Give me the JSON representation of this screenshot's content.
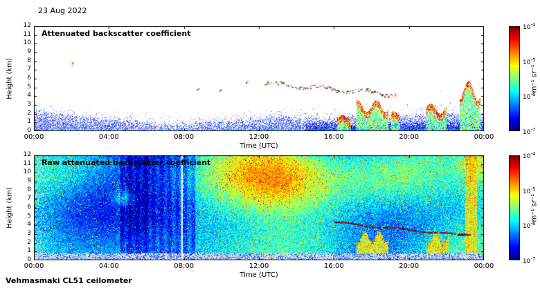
{
  "page": {
    "date_label": "23 Aug 2022",
    "footer_label": "Vehmasmaki CL51 ceilometer",
    "background": "#ffffff"
  },
  "chart_data": [
    {
      "id": "attenuated",
      "type": "heatmap",
      "title": "Attenuated backscatter coefficient",
      "xlabel": "Time (UTC)",
      "ylabel": "Height (km)",
      "x_range_hours": [
        0,
        24
      ],
      "y_range_km": [
        0,
        12
      ],
      "x_ticks": [
        "00:00",
        "04:00",
        "08:00",
        "12:00",
        "16:00",
        "20:00",
        "00:00"
      ],
      "y_ticks": [
        "0",
        "1",
        "2",
        "3",
        "4",
        "5",
        "6",
        "7",
        "8",
        "9",
        "10",
        "11",
        "12"
      ],
      "colormap": "jet",
      "colorbar": {
        "label": "m⁻¹ sr⁻¹",
        "scale": "log",
        "value_range": [
          "1e-7",
          "1e-4"
        ],
        "ticks": [
          {
            "base": "10",
            "exp": "-4"
          },
          {
            "base": "10",
            "exp": "-5"
          },
          {
            "base": "10",
            "exp": "-6"
          },
          {
            "base": "10",
            "exp": "-7"
          }
        ]
      },
      "features": {
        "boundary_layer": {
          "typical_depth_km": 1.5,
          "min_depth_km": 0.7,
          "min_depth_time_h": 8.5
        },
        "surface_returns_time_h": [
          7.3,
          14.6
        ],
        "elevated_speck": {
          "time_h": 2.05,
          "height_km": 7.8
        },
        "aerosol_layer": {
          "start": {
            "time_h": 12.3,
            "height_km": 5.5
          },
          "end": {
            "time_h": 19.5,
            "height_km": 4.2
          }
        },
        "extra_specks": [
          [
            8.7,
            4.8
          ],
          [
            9.9,
            4.7
          ],
          [
            11.3,
            5.6
          ]
        ],
        "cloud_plumes": [
          {
            "t0": 16.1,
            "t1": 16.9,
            "top_km": 1.9
          },
          {
            "t0": 17.2,
            "t1": 18.9,
            "top_km": 3.6
          },
          {
            "t0": 19.05,
            "t1": 19.5,
            "top_km": 2.3
          },
          {
            "t0": 20.9,
            "t1": 22.0,
            "top_km": 3.2
          },
          {
            "t0": 22.7,
            "t1": 23.8,
            "top_km": 5.8
          }
        ]
      }
    },
    {
      "id": "raw",
      "type": "heatmap",
      "title": "Raw attenuated backscatter coefficient",
      "xlabel": "Time (UTC)",
      "ylabel": "Height (km)",
      "x_range_hours": [
        0,
        24
      ],
      "y_range_km": [
        0,
        12
      ],
      "x_ticks": [
        "00:00",
        "04:00",
        "08:00",
        "12:00",
        "16:00",
        "20:00",
        "00:00"
      ],
      "y_ticks": [
        "0",
        "1",
        "2",
        "3",
        "4",
        "5",
        "6",
        "7",
        "8",
        "9",
        "10",
        "11",
        "12"
      ],
      "colormap": "jet",
      "colorbar": {
        "label": "m⁻¹ sr⁻¹",
        "scale": "log",
        "value_range": [
          "1e-7",
          "1e-4"
        ],
        "ticks": [
          {
            "base": "10",
            "exp": "-4"
          },
          {
            "base": "10",
            "exp": "-5"
          },
          {
            "base": "10",
            "exp": "-6"
          },
          {
            "base": "10",
            "exp": "-7"
          }
        ]
      },
      "features": {
        "noise_floor": true,
        "warm_region": {
          "t_center_h": 13,
          "h_center_km": 8.8
        },
        "secondary_warm_region": {
          "t_center_h": 19.8,
          "h_center_km": 8.6
        },
        "small_warm_blob": {
          "t_center_h": 4.8,
          "h_center_km": 7.1
        },
        "dark_streaks_time_h": [
          4.55,
          8.6
        ],
        "white_gap_time_h": 7.88,
        "surface_gray_band_km": 0.85,
        "surface_red_specks_time_h": [
          7.4,
          13.6
        ],
        "aerosol_layer": {
          "start": {
            "time_h": 16.0,
            "height_km": 4.4
          },
          "end": {
            "time_h": 22.5,
            "height_km": 3.0
          }
        },
        "cloud_plumes": [
          {
            "t0": 17.2,
            "t1": 18.9,
            "top_km": 3.4
          },
          {
            "t0": 20.9,
            "t1": 22.1,
            "top_km": 3.2
          },
          {
            "t0": 23.0,
            "t1": 23.6,
            "top_km": 12.0
          }
        ]
      }
    }
  ]
}
